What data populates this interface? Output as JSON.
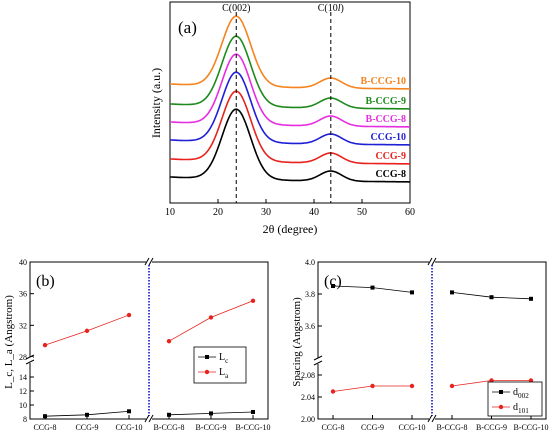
{
  "chart_data": [
    {
      "type": "line",
      "panel_label": "(a)",
      "xlabel": "2θ (degree)",
      "ylabel": "Intensity (a.u.)",
      "xlim": [
        10,
        60
      ],
      "xticks": [
        "10",
        "20",
        "30",
        "40",
        "50",
        "60"
      ],
      "reference_lines": [
        {
          "x": 23.8,
          "label": "C(002)"
        },
        {
          "x": 43.5,
          "label": "C(10l)"
        }
      ],
      "series": [
        {
          "name": "CCG-8",
          "color": "#000000"
        },
        {
          "name": "CCG-9",
          "color": "#e8231e"
        },
        {
          "name": "CCG-10",
          "color": "#1f1fd6"
        },
        {
          "name": "B-CCG-8",
          "color": "#e62ee0"
        },
        {
          "name": "B-CCG-9",
          "color": "#1e8a1e"
        },
        {
          "name": "B-CCG-10",
          "color": "#f5841f"
        }
      ],
      "peak_shape": {
        "peak1": {
          "center": 23.8,
          "width": 4.2
        },
        "peak2": {
          "center": 43.5,
          "width": 3.2
        }
      }
    },
    {
      "type": "line",
      "panel_label": "(b)",
      "ylabel": "L_c, L_a (Angstrom)",
      "categories": [
        "CCG-8",
        "CCG-9",
        "CCG-10",
        "B-CCG-8",
        "B-CCG-9",
        "B-CCG-10"
      ],
      "y_upper_range": [
        28,
        40
      ],
      "y_lower_range": [
        8,
        16
      ],
      "y_upper_ticks": [
        "28",
        "32",
        "36",
        "40"
      ],
      "y_lower_ticks": [
        "8",
        "10",
        "12",
        "14"
      ],
      "legend_position": "right",
      "series": [
        {
          "name": "L_c",
          "color": "#000000",
          "marker": "square",
          "values": [
            8.4,
            8.6,
            9.1,
            8.6,
            8.8,
            9.0
          ]
        },
        {
          "name": "L_a",
          "color": "#e8231e",
          "marker": "circle",
          "values": [
            29.5,
            31.3,
            33.3,
            30.0,
            33.0,
            35.1
          ]
        }
      ]
    },
    {
      "type": "line",
      "panel_label": "(c)",
      "ylabel": "Spacing (Angstrom)",
      "categories": [
        "CCG-8",
        "CCG-9",
        "CCG-10",
        "B-CCG-8",
        "B-CCG-9",
        "B-CCG-10"
      ],
      "y_upper_range": [
        3.4,
        4.0
      ],
      "y_lower_range": [
        2.0,
        2.1
      ],
      "y_upper_ticks": [
        "3.6",
        "3.8",
        "4.0"
      ],
      "y_lower_ticks": [
        "2.00",
        "2.04",
        "2.08"
      ],
      "legend_position": "bottom-right",
      "series": [
        {
          "name": "d_002",
          "color": "#000000",
          "marker": "square",
          "values": [
            3.85,
            3.84,
            3.81,
            3.81,
            3.78,
            3.77
          ]
        },
        {
          "name": "d_101",
          "color": "#e8231e",
          "marker": "circle",
          "values": [
            2.05,
            2.06,
            2.06,
            2.06,
            2.07,
            2.07
          ]
        }
      ]
    }
  ]
}
